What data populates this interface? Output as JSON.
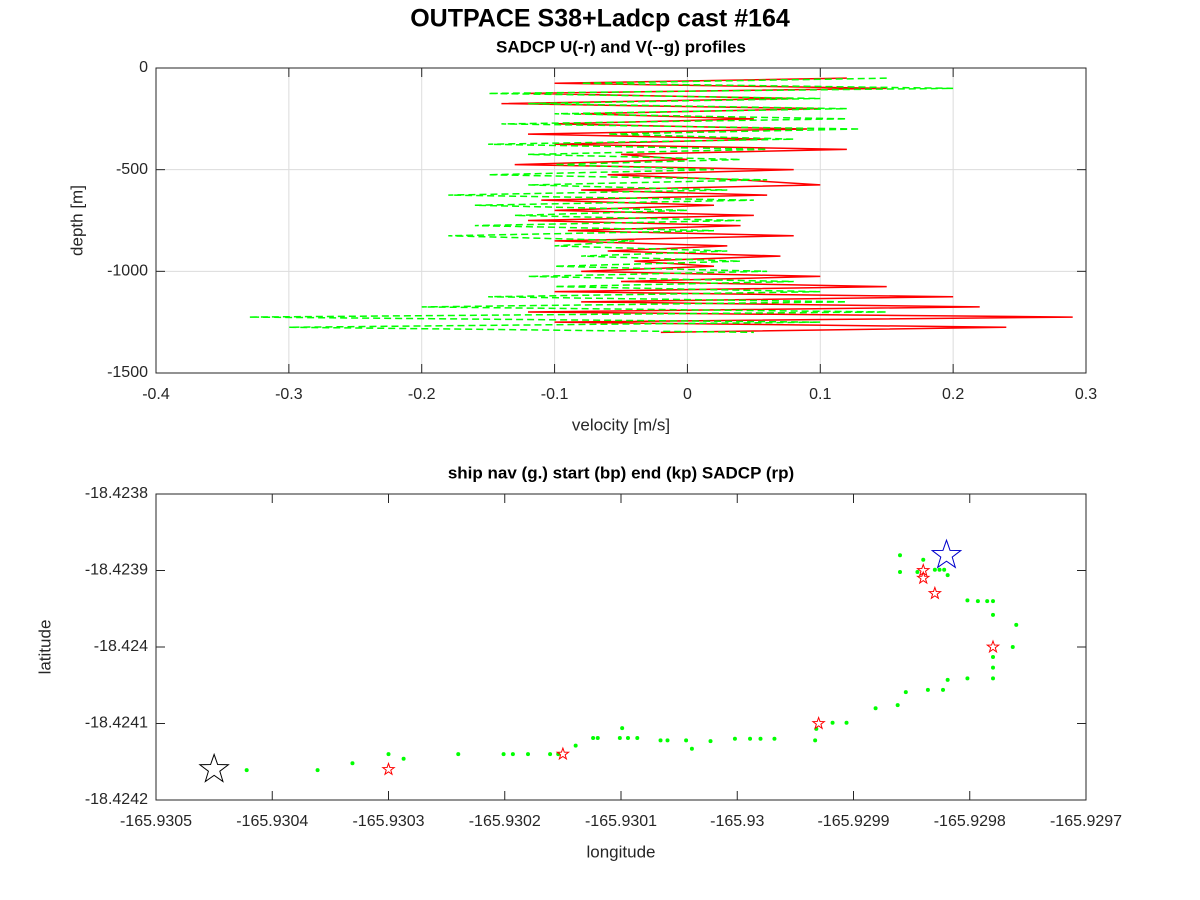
{
  "title": "OUTPACE S38+Ladcp cast #164",
  "chart_data": [
    {
      "type": "line",
      "title": "SADCP U(-r) and V(--g) profiles",
      "xlabel": "velocity [m/s]",
      "ylabel": "depth [m]",
      "xlim": [
        -0.4,
        0.3
      ],
      "xticks": [
        -0.4,
        -0.3,
        -0.2,
        -0.1,
        0,
        0.1,
        0.2,
        0.3
      ],
      "ylim": [
        -1500,
        0
      ],
      "yticks": [
        -1500,
        -1000,
        -500,
        0
      ],
      "grid": true,
      "y": [
        -50,
        -75,
        -100,
        -125,
        -150,
        -175,
        -200,
        -225,
        -250,
        -275,
        -300,
        -325,
        -350,
        -375,
        -400,
        -425,
        -450,
        -475,
        -500,
        -525,
        -550,
        -575,
        -600,
        -625,
        -650,
        -675,
        -700,
        -725,
        -750,
        -775,
        -800,
        -825,
        -850,
        -875,
        -900,
        -925,
        -950,
        -975,
        -1000,
        -1025,
        -1050,
        -1075,
        -1100,
        -1125,
        -1150,
        -1175,
        -1200,
        -1225,
        -1250,
        -1275,
        -1300
      ],
      "series": [
        {
          "color": "#ff0000",
          "dash": "solid",
          "x": [
            0.12,
            -0.1,
            0.15,
            -0.12,
            0.08,
            -0.14,
            0.1,
            -0.08,
            0.05,
            -0.1,
            0.09,
            -0.12,
            0.06,
            -0.1,
            0.12,
            -0.05,
            0.0,
            -0.13,
            0.08,
            -0.06,
            0.04,
            0.1,
            -0.08,
            0.06,
            -0.11,
            0.02,
            -0.1,
            0.05,
            -0.12,
            0.04,
            -0.09,
            0.08,
            -0.1,
            0.03,
            -0.06,
            0.07,
            -0.04,
            0.02,
            -0.08,
            0.1,
            -0.05,
            0.15,
            -0.1,
            0.2,
            -0.08,
            0.22,
            -0.12,
            0.29,
            -0.1,
            0.24,
            -0.02
          ]
        },
        {
          "color": "#00ff00",
          "dash": "dashed",
          "x": [
            0.15,
            -0.08,
            0.2,
            -0.15,
            0.1,
            -0.12,
            0.12,
            -0.1,
            0.12,
            -0.14,
            0.13,
            -0.06,
            0.08,
            -0.15,
            0.06,
            -0.12,
            0.04,
            -0.1,
            0.02,
            -0.15,
            0.06,
            -0.12,
            0.03,
            -0.18,
            0.05,
            -0.16,
            0.0,
            -0.13,
            0.04,
            -0.16,
            0.02,
            -0.18,
            -0.04,
            -0.1,
            0.03,
            -0.08,
            0.04,
            -0.1,
            0.06,
            -0.12,
            0.08,
            -0.1,
            0.1,
            -0.15,
            0.12,
            -0.2,
            0.15,
            -0.33,
            0.1,
            -0.3,
            0.05
          ]
        }
      ]
    },
    {
      "type": "scatter",
      "title": "ship nav (g.) start (bp) end (kp) SADCP (rp)",
      "xlabel": "longitude",
      "ylabel": "latitude",
      "xlim": [
        -165.9305,
        -165.9297
      ],
      "xticks": [
        -165.9305,
        -165.9304,
        -165.9303,
        -165.9302,
        -165.9301,
        -165.93,
        -165.9299,
        -165.9298,
        -165.9297
      ],
      "ylim": [
        -18.4242,
        -18.4238
      ],
      "yticks": [
        -18.4242,
        -18.4241,
        -18.424,
        -18.4239,
        -18.4238
      ],
      "grid": false,
      "series": [
        {
          "color": "#00ff00",
          "marker": "dot",
          "x": [
            -165.930422,
            -165.930361,
            -165.930331,
            -165.9303,
            -165.930287,
            -165.93024,
            -165.930201,
            -165.930193,
            -165.93018,
            -165.930161,
            -165.930154,
            -165.930139,
            -165.930124,
            -165.93012,
            -165.930101,
            -165.930099,
            -165.930094,
            -165.930086,
            -165.930066,
            -165.93006,
            -165.930044,
            -165.930039,
            -165.930023,
            -165.930002,
            -165.929989,
            -165.92998,
            -165.929968,
            -165.929933,
            -165.929932,
            -165.929918,
            -165.929906,
            -165.929881,
            -165.929862,
            -165.929855,
            -165.929836,
            -165.929823,
            -165.929819,
            -165.929802,
            -165.92978,
            -165.92978,
            -165.929763,
            -165.92978,
            -165.92976,
            -165.92978,
            -165.92978,
            -165.929785,
            -165.929793,
            -165.929802,
            -165.929819,
            -165.929826,
            -165.92984,
            -165.92986,
            -165.92986,
            -165.929845,
            -165.92983,
            -165.929822
          ],
          "y": [
            -18.424161,
            -18.424161,
            -18.424152,
            -18.42414,
            -18.424146,
            -18.42414,
            -18.42414,
            -18.42414,
            -18.42414,
            -18.42414,
            -18.42414,
            -18.424129,
            -18.424119,
            -18.424119,
            -18.424119,
            -18.424106,
            -18.424119,
            -18.424119,
            -18.424122,
            -18.424122,
            -18.424122,
            -18.424133,
            -18.424123,
            -18.42412,
            -18.42412,
            -18.42412,
            -18.42412,
            -18.424122,
            -18.424107,
            -18.424099,
            -18.424099,
            -18.42408,
            -18.424076,
            -18.424059,
            -18.424056,
            -18.424056,
            -18.424043,
            -18.424041,
            -18.424041,
            -18.424027,
            -18.424,
            -18.424013,
            -18.423971,
            -18.423958,
            -18.42394,
            -18.42394,
            -18.42394,
            -18.423939,
            -18.423906,
            -18.423899,
            -18.423886,
            -18.42388,
            -18.423902,
            -18.423902,
            -18.423899,
            -18.423899
          ]
        },
        {
          "color": "#ff0000",
          "marker": "small-star",
          "x": [
            -165.92984,
            -165.92984,
            -165.92983,
            -165.92978,
            -165.92993,
            -165.93015,
            -165.9303
          ],
          "y": [
            -18.4239,
            -18.42391,
            -18.42393,
            -18.424,
            -18.4241,
            -18.42414,
            -18.42416
          ]
        },
        {
          "color": "#0000cc",
          "marker": "large-star",
          "x": [
            -165.92982
          ],
          "y": [
            -18.42388
          ]
        },
        {
          "color": "#000000",
          "marker": "large-star",
          "x": [
            -165.93045
          ],
          "y": [
            -18.42416
          ]
        }
      ]
    }
  ]
}
